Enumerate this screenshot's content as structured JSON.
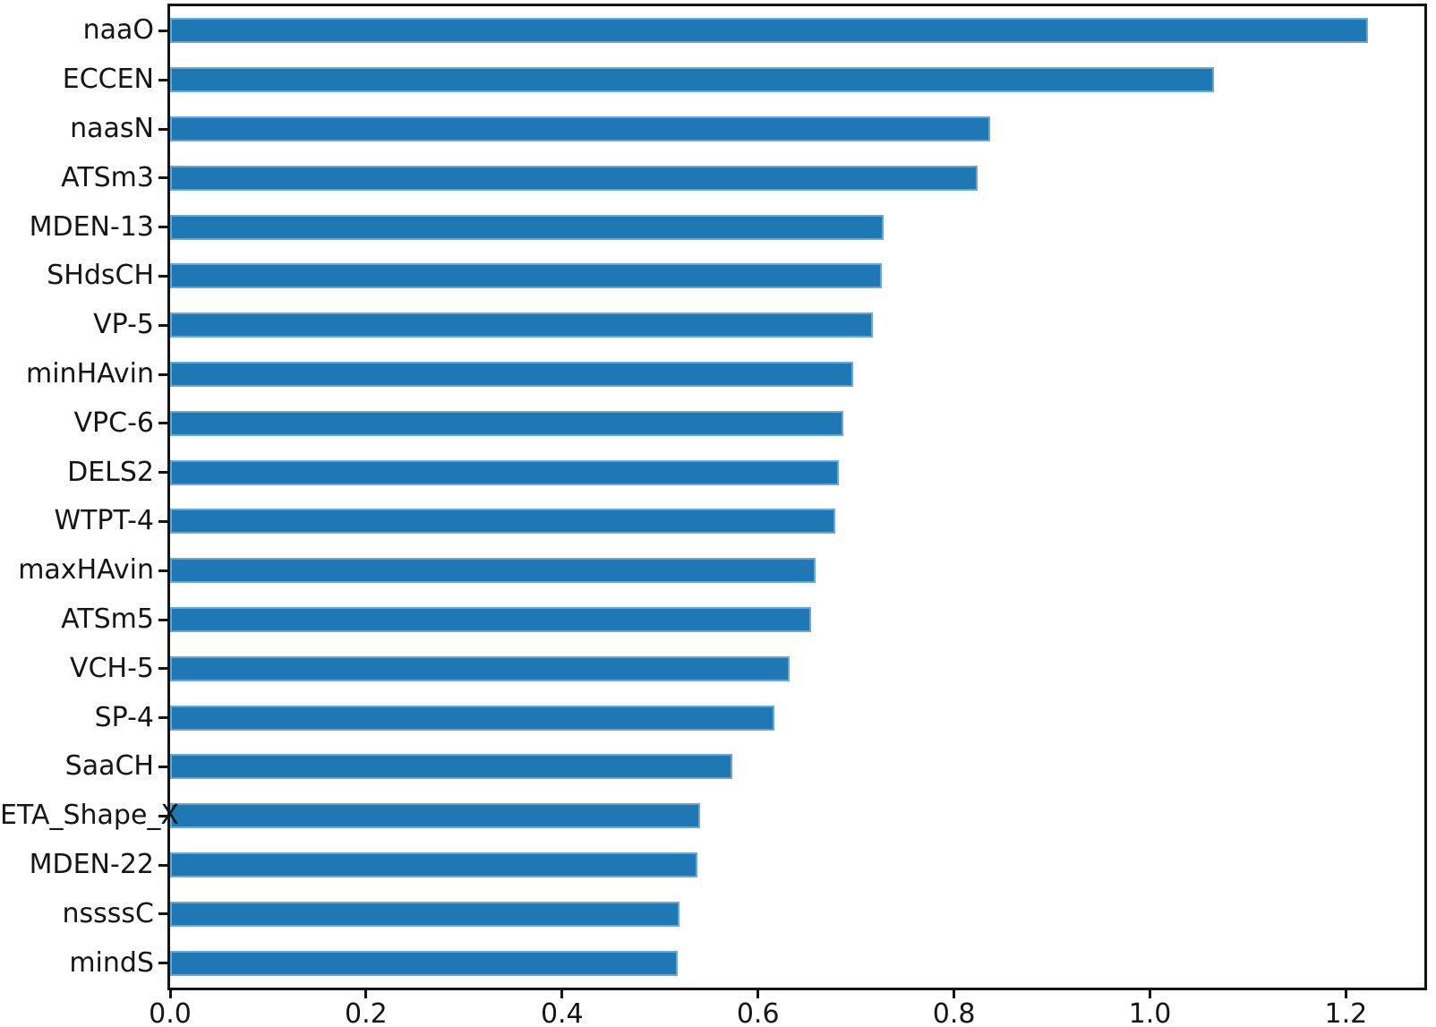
{
  "chart_data": {
    "type": "bar",
    "orientation": "horizontal",
    "title": "",
    "xlabel": "",
    "ylabel": "",
    "grid": false,
    "legend": false,
    "bar_color": "#1f77b4",
    "axis_color": "#141414",
    "xlim": [
      0,
      1.28
    ],
    "x_ticks": [
      "0.0",
      "0.2",
      "0.4",
      "0.6",
      "0.8",
      "1.0",
      "1.2"
    ],
    "x_tick_values": [
      0.0,
      0.2,
      0.4,
      0.6,
      0.8,
      1.0,
      1.2
    ],
    "categories": [
      "naaO",
      "ECCEN",
      "naasN",
      "ATSm3",
      "MDEN-13",
      "SHdsCH",
      "VP-5",
      "minHAvin",
      "VPC-6",
      "DELS2",
      "WTPT-4",
      "maxHAvin",
      "ATSm5",
      "VCH-5",
      "SP-4",
      "SaaCH",
      "ETA_Shape_X",
      "MDEN-22",
      "nssssC",
      "mindS"
    ],
    "values": [
      1.222,
      1.065,
      0.837,
      0.824,
      0.728,
      0.726,
      0.717,
      0.697,
      0.687,
      0.682,
      0.679,
      0.659,
      0.654,
      0.632,
      0.617,
      0.574,
      0.541,
      0.538,
      0.52,
      0.518
    ]
  }
}
